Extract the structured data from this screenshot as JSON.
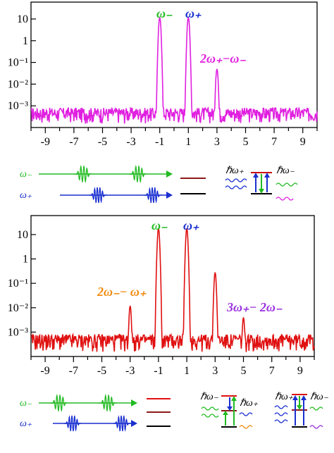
{
  "chart_data": [
    {
      "type": "line",
      "panel": "top",
      "y_scale": "log",
      "x_ticks": [
        -9,
        -7,
        -5,
        -3,
        -1,
        1,
        3,
        5,
        7,
        9
      ],
      "y_ticks": [
        "10",
        "1",
        "10⁻¹",
        "10⁻²",
        "10⁻³"
      ],
      "y_tick_values": [
        10,
        1,
        0.1,
        0.01,
        0.001
      ],
      "ylim": [
        0.0001,
        60
      ],
      "xlim": [
        -10,
        10
      ],
      "series": [
        {
          "color": "#e020e0",
          "peaks": [
            {
              "x": -1,
              "y": 12
            },
            {
              "x": 1,
              "y": 12
            },
            {
              "x": 3,
              "y": 0.05
            }
          ],
          "noise_floor": 0.0003
        }
      ],
      "annotations": [
        {
          "text": "ω₋",
          "x": -1,
          "color": "#22bb22"
        },
        {
          "text": "ω₊",
          "x": 1,
          "color": "#1a2fd0"
        },
        {
          "text": "2ω₊−ω₋",
          "x": 3,
          "color": "#e020e0"
        }
      ]
    },
    {
      "type": "line",
      "panel": "bottom",
      "y_scale": "log",
      "x_ticks": [
        -9,
        -7,
        -5,
        -3,
        -1,
        1,
        3,
        5,
        7,
        9
      ],
      "y_ticks": [
        "10",
        "1",
        "10⁻¹",
        "10⁻²",
        "10⁻³"
      ],
      "y_tick_values": [
        10,
        1,
        0.1,
        0.01,
        0.001
      ],
      "ylim": [
        0.0001,
        60
      ],
      "xlim": [
        -10,
        10
      ],
      "series": [
        {
          "color": "#e01010",
          "peaks": [
            {
              "x": -3,
              "y": 0.012
            },
            {
              "x": -1,
              "y": 18
            },
            {
              "x": 1,
              "y": 18
            },
            {
              "x": 3,
              "y": 0.28
            },
            {
              "x": 5,
              "y": 0.004
            }
          ],
          "noise_floor": 0.0003
        }
      ],
      "annotations": [
        {
          "text": "ω₋",
          "x": -1,
          "color": "#22bb22"
        },
        {
          "text": "ω₊",
          "x": 1,
          "color": "#1a2fd0"
        },
        {
          "text": "2ω₋− ω₊",
          "x": -3,
          "color": "#f08a10"
        },
        {
          "text": "3ω₊− 2ω₋",
          "x": 5,
          "color": "#9a30e0"
        }
      ]
    }
  ],
  "schemes": {
    "top": {
      "minus_label": "ω₋",
      "plus_label": "ω₊",
      "photon_plus": "ℏω₊",
      "photon_minus": "ℏω₋"
    },
    "bottom": {
      "minus_label": "ω₋",
      "plus_label": "ω₊",
      "photon_minus_1": "ℏω₋",
      "photon_plus_1": "ℏω₊",
      "photon_minus_2": "ℏω₋",
      "photon_plus_2": "ℏω₊"
    }
  },
  "colors": {
    "green": "#22bb22",
    "blue": "#1a2fd0",
    "magenta": "#e020e0",
    "red": "#e01010",
    "orange": "#f08a10",
    "purple": "#9a30e0",
    "darkred": "#8b1a1a"
  }
}
